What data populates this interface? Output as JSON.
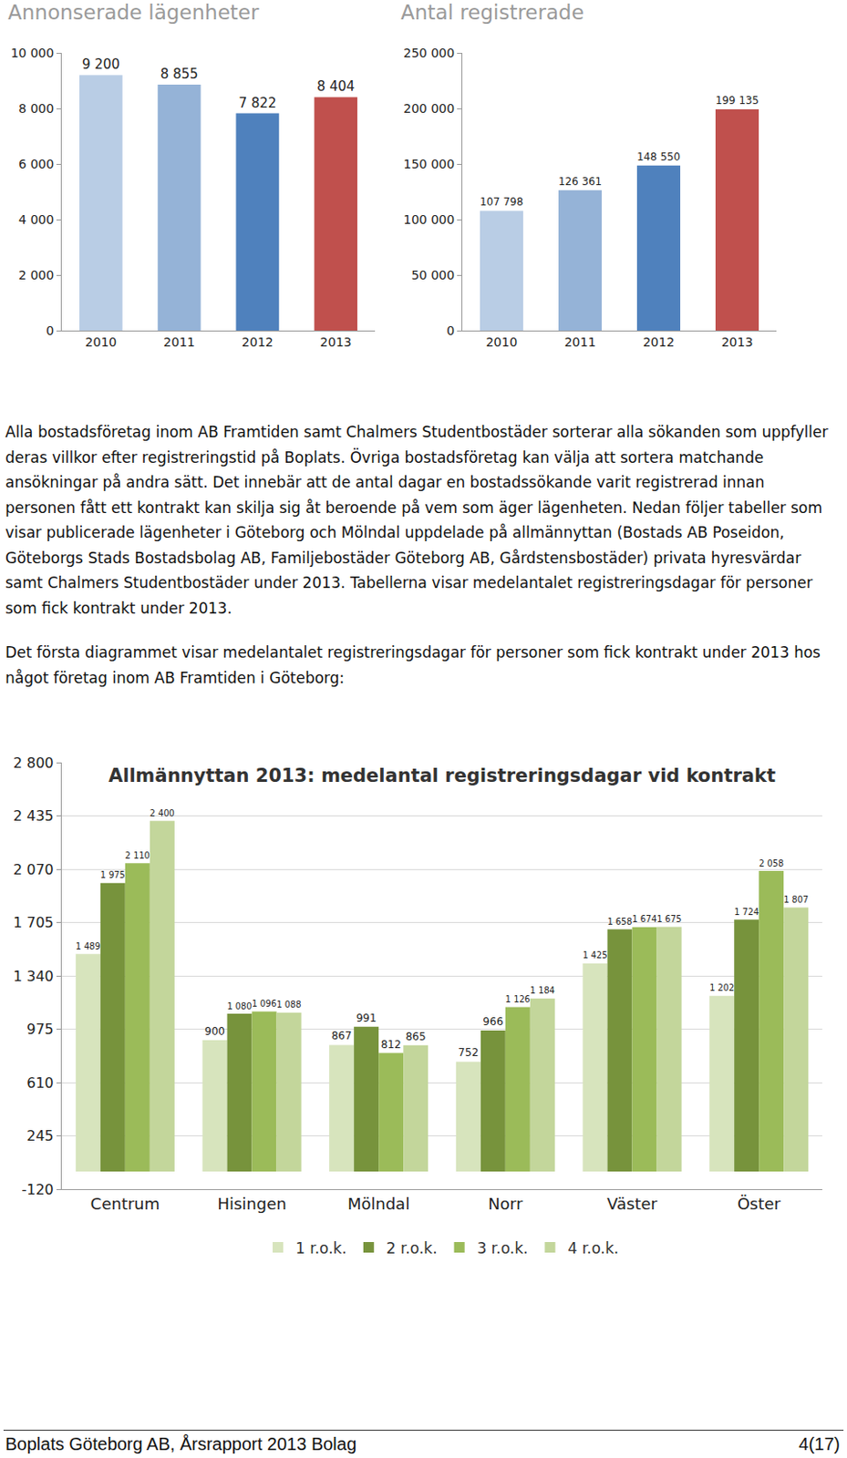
{
  "chart_data": [
    {
      "type": "bar",
      "title": "Annonserade lägenheter",
      "categories": [
        "2010",
        "2011",
        "2012",
        "2013"
      ],
      "values": [
        9200,
        8855,
        7822,
        8404
      ],
      "value_labels": [
        "9 200",
        "8 855",
        "7 822",
        "8 404"
      ],
      "colors": [
        "#b9cde5",
        "#95b3d7",
        "#4f81bd",
        "#c0504d"
      ],
      "ylim": [
        0,
        10000
      ],
      "yticks": [
        0,
        {
          "value": 2000,
          "label": "2 000"
        },
        {
          "value": 4000,
          "label": "4 000"
        },
        {
          "value": 6000,
          "label": "6 000"
        },
        {
          "value": 8000,
          "label": "8 000"
        },
        {
          "value": 10000,
          "label": "10 000"
        }
      ],
      "grid": false,
      "data_labels": true
    },
    {
      "type": "bar",
      "title": "Antal registrerade",
      "categories": [
        "2010",
        "2011",
        "2012",
        "2013"
      ],
      "values": [
        107798,
        126361,
        148550,
        199135
      ],
      "value_labels": [
        "107 798",
        "126 361",
        "148 550",
        "199 135"
      ],
      "colors": [
        "#b9cde5",
        "#95b3d7",
        "#4f81bd",
        "#c0504d"
      ],
      "ylim": [
        0,
        250000
      ],
      "yticks": [
        0,
        {
          "value": 50000,
          "label": "50 000"
        },
        {
          "value": 100000,
          "label": "100 000"
        },
        {
          "value": 150000,
          "label": "150 000"
        },
        {
          "value": 200000,
          "label": "200 000"
        },
        {
          "value": 250000,
          "label": "250 000"
        }
      ],
      "grid": false,
      "data_labels": true
    },
    {
      "type": "bar",
      "title": "Allmännyttan 2013: medelantal registreringsdagar vid kontrakt",
      "categories": [
        "Centrum",
        "Hisingen",
        "Mölndal",
        "Norr",
        "Väster",
        "Öster"
      ],
      "series": [
        {
          "name": "1 r.o.k.",
          "color": "#d7e4bd",
          "values": [
            1489,
            900,
            867,
            752,
            1425,
            1202
          ],
          "value_labels": [
            "1 489",
            "900",
            "867",
            "752",
            "1 425",
            "1 202"
          ]
        },
        {
          "name": "2 r.o.k.",
          "color": "#77933c",
          "values": [
            1975,
            1080,
            991,
            966,
            1658,
            1724
          ],
          "value_labels": [
            "1 975",
            "1 080",
            "991",
            "966",
            "1 658",
            "1 724"
          ]
        },
        {
          "name": "3 r.o.k.",
          "color": "#9bbb59",
          "values": [
            2110,
            1096,
            812,
            1126,
            1674,
            2058
          ],
          "value_labels": [
            "2 110",
            "1 096",
            "812",
            "1 126",
            "1 674",
            "2 058"
          ]
        },
        {
          "name": "4 r.o.k.",
          "color": "#c3d69b",
          "values": [
            2400,
            1088,
            865,
            1184,
            1675,
            1807
          ],
          "value_labels": [
            "2 400",
            "1 088",
            "865",
            "1 184",
            "1 675",
            "1 807"
          ]
        }
      ],
      "ylim": [
        -120,
        2800
      ],
      "yticks": [
        -120,
        245,
        610,
        975,
        {
          "value": 1340,
          "label": "1 340"
        },
        {
          "value": 1705,
          "label": "1 705"
        },
        {
          "value": 2070,
          "label": "2 070"
        },
        {
          "value": 2435,
          "label": "2 435"
        },
        {
          "value": 2800,
          "label": "2 800"
        }
      ],
      "grid": true,
      "legend": "bottom",
      "data_labels": true
    }
  ],
  "text": {
    "paragraphs": [
      "Alla bostadsföretag inom AB Framtiden samt Chalmers Studentbostäder sorterar alla sökanden som uppfyller deras villkor efter registreringstid på Boplats. Övriga bostadsföretag kan välja att sortera matchande ansökningar på andra sätt. Det innebär att de antal dagar en bostadssökande varit registrerad innan personen fått ett kontrakt kan skilja sig åt beroende på vem som äger lägenheten. Nedan följer tabeller som visar publicerade lägenheter i Göteborg och Mölndal uppdelade på allmännyttan (Bostads AB Poseidon, Göteborgs Stads Bostadsbolag AB, Familjebostäder Göteborg AB, Gårdstensbostäder) privata hyresvärdar samt Chalmers Studentbostäder under 2013. Tabellerna visar medelantalet registreringsdagar för personer som fick kontrakt under 2013.",
      "Det första diagrammet visar medelantalet registreringsdagar för personer som fick kontrakt under 2013 hos något företag inom AB Framtiden i Göteborg:"
    ]
  },
  "footer": {
    "left": "Boplats Göteborg AB, Årsrapport 2013 Bolag",
    "right": "4(17)"
  }
}
